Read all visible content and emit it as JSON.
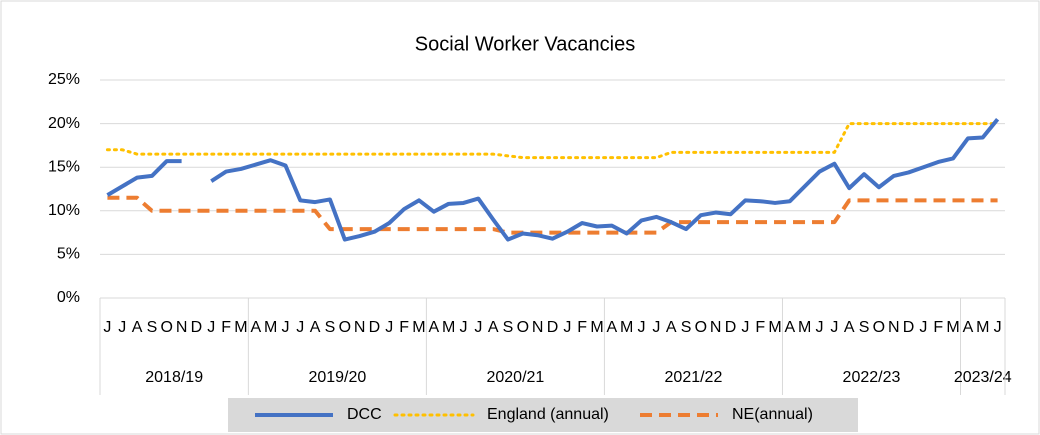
{
  "chart_data": {
    "type": "line",
    "title": "Social Worker Vacancies",
    "groups": [
      {
        "label": "2018/19",
        "categories": [
          "J",
          "J",
          "A",
          "S",
          "O",
          "N",
          "D",
          "J",
          "F",
          "M"
        ]
      },
      {
        "label": "2019/20",
        "categories": [
          "A",
          "M",
          "J",
          "J",
          "A",
          "S",
          "O",
          "N",
          "D",
          "J",
          "F",
          "M"
        ]
      },
      {
        "label": "2020/21",
        "categories": [
          "A",
          "M",
          "J",
          "J",
          "A",
          "S",
          "O",
          "N",
          "D",
          "J",
          "F",
          "M"
        ]
      },
      {
        "label": "2021/22",
        "categories": [
          "A",
          "M",
          "J",
          "J",
          "A",
          "S",
          "O",
          "N",
          "D",
          "J",
          "F",
          "M"
        ]
      },
      {
        "label": "2022/23",
        "categories": [
          "A",
          "M",
          "J",
          "J",
          "A",
          "S",
          "O",
          "N",
          "D",
          "J",
          "F",
          "M"
        ]
      },
      {
        "label": "2023/24",
        "categories": [
          "A",
          "M",
          "J"
        ]
      }
    ],
    "series": [
      {
        "name": "DCC",
        "color": "#4472c4",
        "style": "solid",
        "values": [
          11.8,
          12.8,
          13.8,
          14.0,
          15.7,
          15.7,
          null,
          13.4,
          14.5,
          14.8,
          15.3,
          15.8,
          15.2,
          11.2,
          11.0,
          11.3,
          6.7,
          7.1,
          7.6,
          8.6,
          10.2,
          11.2,
          9.9,
          10.8,
          10.9,
          11.4,
          9.0,
          6.7,
          7.4,
          7.2,
          6.8,
          7.6,
          8.6,
          8.2,
          8.3,
          7.4,
          8.9,
          9.3,
          8.7,
          7.9,
          9.5,
          9.8,
          9.6,
          11.2,
          11.1,
          10.9,
          11.1,
          12.8,
          14.5,
          15.4,
          12.6,
          14.2,
          12.7,
          14.0,
          14.4,
          15.0,
          15.6,
          16.0,
          18.3,
          18.4,
          20.5
        ]
      },
      {
        "name": "England (annual)",
        "color": "#ffc000",
        "style": "dotted",
        "values": [
          17.0,
          17.0,
          16.5,
          16.5,
          16.5,
          16.5,
          16.5,
          16.5,
          16.5,
          16.5,
          16.5,
          16.5,
          16.5,
          16.5,
          16.5,
          16.5,
          16.5,
          16.5,
          16.5,
          16.5,
          16.5,
          16.5,
          16.5,
          16.5,
          16.5,
          16.5,
          16.5,
          16.3,
          16.1,
          16.1,
          16.1,
          16.1,
          16.1,
          16.1,
          16.1,
          16.1,
          16.1,
          16.1,
          16.7,
          16.7,
          16.7,
          16.7,
          16.7,
          16.7,
          16.7,
          16.7,
          16.7,
          16.7,
          16.7,
          16.7,
          20.0,
          20.0,
          20.0,
          20.0,
          20.0,
          20.0,
          20.0,
          20.0,
          20.0,
          20.0,
          20.0
        ]
      },
      {
        "name": "NE(annual)",
        "color": "#ed7d31",
        "style": "dashed",
        "values": [
          11.5,
          11.5,
          11.5,
          10.0,
          10.0,
          10.0,
          10.0,
          10.0,
          10.0,
          10.0,
          10.0,
          10.0,
          10.0,
          10.0,
          10.0,
          7.9,
          7.9,
          7.9,
          7.9,
          7.9,
          7.9,
          7.9,
          7.9,
          7.9,
          7.9,
          7.9,
          7.9,
          7.5,
          7.5,
          7.5,
          7.5,
          7.5,
          7.5,
          7.5,
          7.5,
          7.5,
          7.5,
          7.5,
          8.7,
          8.7,
          8.7,
          8.7,
          8.7,
          8.7,
          8.7,
          8.7,
          8.7,
          8.7,
          8.7,
          8.7,
          11.2,
          11.2,
          11.2,
          11.2,
          11.2,
          11.2,
          11.2,
          11.2,
          11.2,
          11.2,
          11.2
        ]
      }
    ],
    "ylim": [
      0,
      25
    ],
    "yticks": [
      {
        "value": 0,
        "label": "0%"
      },
      {
        "value": 5,
        "label": "5%"
      },
      {
        "value": 10,
        "label": "10%"
      },
      {
        "value": 15,
        "label": "15%"
      },
      {
        "value": 20,
        "label": "20%"
      },
      {
        "value": 25,
        "label": "25%"
      }
    ],
    "grid": true,
    "legend": "bottom"
  }
}
